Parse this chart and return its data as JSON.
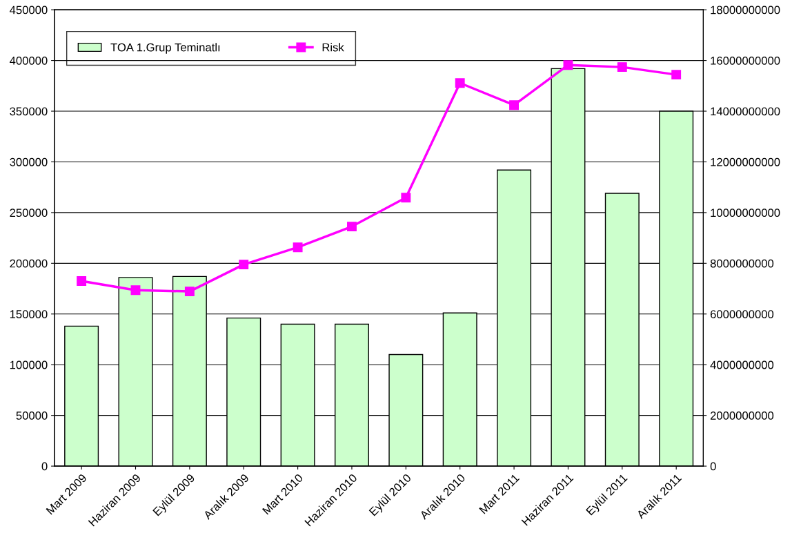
{
  "chart_data": {
    "type": "bar",
    "categories": [
      "Mart 2009",
      "Haziran 2009",
      "Eylül 2009",
      "Aralık 2009",
      "Mart 2010",
      "Haziran 2010",
      "Eylül 2010",
      "Aralık 2010",
      "Mart 2011",
      "Haziran 2011",
      "Eylül 2011",
      "Aralık 2011"
    ],
    "series": [
      {
        "name": "TOA 1.Grup Teminatlı",
        "color": "#ccffcc",
        "values": [
          138000,
          186000,
          187000,
          146000,
          140000,
          140000,
          110000,
          151000,
          292000,
          392000,
          269000,
          350000
        ]
      },
      {
        "name": "Risk",
        "type": "line",
        "axis": "y2",
        "color": "#ff00ff",
        "marker": "square",
        "values": [
          7300000000,
          6940000000,
          6890000000,
          7950000000,
          8630000000,
          9450000000,
          10590000000,
          15110000000,
          14240000000,
          15820000000,
          15740000000,
          15440000000
        ]
      }
    ],
    "ylim": [
      0,
      450000
    ],
    "yticks": [
      0,
      50000,
      100000,
      150000,
      200000,
      250000,
      300000,
      350000,
      400000,
      450000
    ],
    "y2lim": [
      0,
      18000000000
    ],
    "y2ticks": [
      0,
      2000000000,
      4000000000,
      6000000000,
      8000000000,
      10000000000,
      12000000000,
      14000000000,
      16000000000,
      18000000000
    ],
    "grid": "y",
    "legend": "top left"
  }
}
